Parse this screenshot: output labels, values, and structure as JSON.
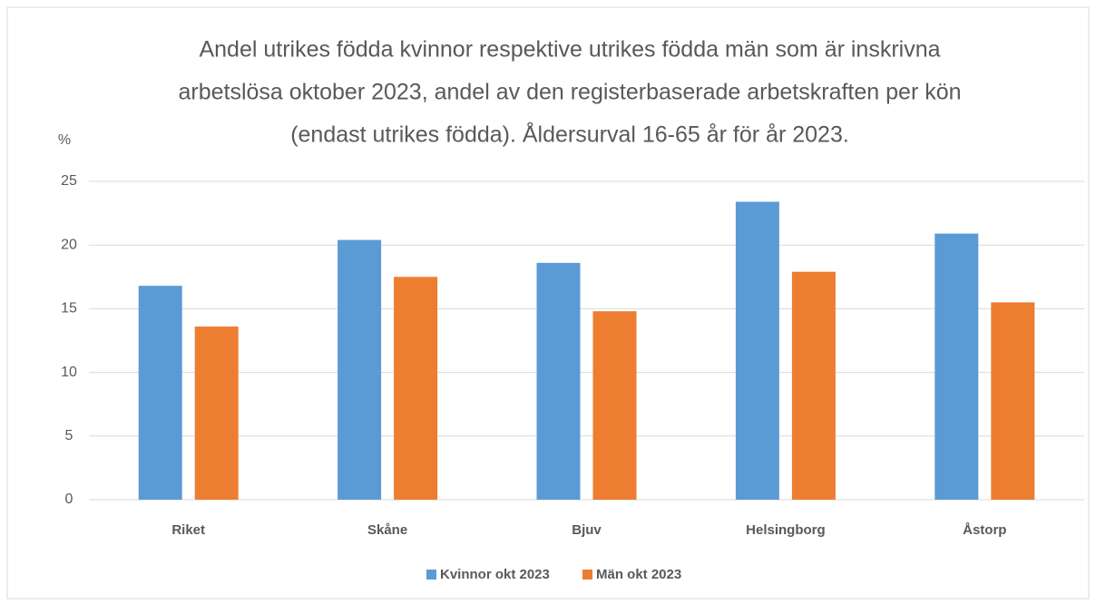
{
  "chart_data": {
    "type": "bar",
    "title": [
      "Andel utrikes födda kvinnor respektive utrikes födda män som är inskrivna",
      "arbetslösa oktober 2023, andel av den registerbaserade arbetskraften per kön",
      "(endast utrikes födda). Åldersurval 16-65 år för år 2023."
    ],
    "y_label": "%",
    "categories": [
      "Riket",
      "Skåne",
      "Bjuv",
      "Helsingborg",
      "Åstorp"
    ],
    "series": [
      {
        "name": "Kvinnor okt 2023",
        "color": "#5b9bd5",
        "values": [
          16.8,
          20.4,
          18.6,
          23.4,
          20.9
        ]
      },
      {
        "name": "Män okt 2023",
        "color": "#ed7d31",
        "values": [
          13.6,
          17.5,
          14.8,
          17.9,
          15.5
        ]
      }
    ],
    "ylim": [
      0,
      25
    ],
    "yticks": [
      0,
      5,
      10,
      15,
      20,
      25
    ],
    "grid": true,
    "legend": "bottom"
  }
}
